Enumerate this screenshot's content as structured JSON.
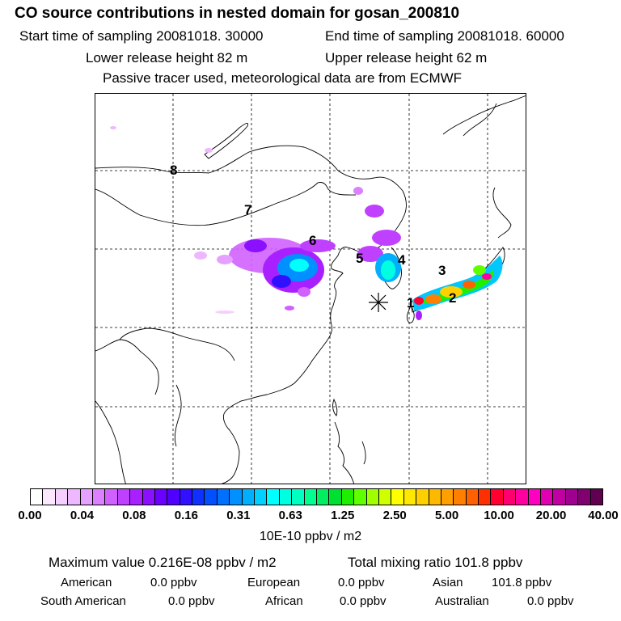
{
  "header": {
    "title": "CO  source contributions in nested domain for gosan_200810",
    "start_time": "Start time of sampling 20081018. 30000",
    "end_time": "End time of sampling 20081018. 60000",
    "lower_release": "Lower release height   82 m",
    "upper_release": "Upper release height   62 m",
    "tracer_note": "Passive tracer used, meteorological data are from ECMWF"
  },
  "map": {
    "region_labels": [
      "1",
      "2",
      "3",
      "4",
      "5",
      "6",
      "7",
      "8"
    ],
    "receptor_marker": "receptor-star"
  },
  "colorbar": {
    "tick_labels": [
      "0.00",
      "0.04",
      "0.08",
      "0.16",
      "0.31",
      "0.63",
      "1.25",
      "2.50",
      "5.00",
      "10.00",
      "20.00",
      "40.00"
    ],
    "colors": [
      "#ffffff",
      "#fbe8ff",
      "#f5d0ff",
      "#eeb8ff",
      "#e6a0ff",
      "#dc80ff",
      "#d060ff",
      "#c040ff",
      "#a820ff",
      "#8a10ff",
      "#6a00ff",
      "#5000ff",
      "#3010ff",
      "#1030ff",
      "#0050ff",
      "#0070ff",
      "#0090ff",
      "#00b0ff",
      "#00d0ff",
      "#00ffff",
      "#00ffe0",
      "#00ffc0",
      "#00ff90",
      "#00ee60",
      "#00e030",
      "#20ee00",
      "#60ff00",
      "#a0ff00",
      "#d0ff00",
      "#ffff00",
      "#ffe800",
      "#ffd000",
      "#ffb800",
      "#ffa000",
      "#ff8000",
      "#ff6000",
      "#ff3000",
      "#ff0030",
      "#ff0070",
      "#ff00a0",
      "#ff00c0",
      "#e000b0",
      "#c000a0",
      "#a00090",
      "#800070",
      "#600050"
    ],
    "unit": "10E-10 ppbv / m2"
  },
  "stats": {
    "max_value": "Maximum value  0.216E-08 ppbv / m2",
    "total_mixing": "Total mixing ratio      101.8 ppbv",
    "american": "American",
    "american_val": "0.0 ppbv",
    "european": "European",
    "european_val": "0.0 ppbv",
    "asian": "Asian",
    "asian_val": "101.8 ppbv",
    "south_american": "South American",
    "south_american_val": "0.0 ppbv",
    "african": "African",
    "african_val": "0.0 ppbv",
    "australian": "Australian",
    "australian_val": "0.0 ppbv"
  }
}
